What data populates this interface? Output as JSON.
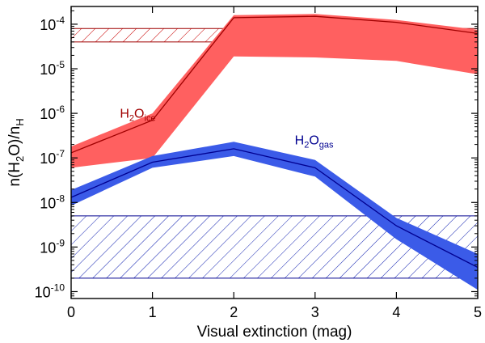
{
  "chart_data": {
    "type": "area",
    "x": [
      0,
      1,
      2,
      3,
      4,
      5
    ],
    "xlim": [
      0,
      5
    ],
    "xlabel": "Visual extinction (mag)",
    "x_ticks": [
      "0",
      "1",
      "2",
      "3",
      "4",
      "5"
    ],
    "ylabel": {
      "base": "n(H",
      "sub1": "2",
      "mid": "O)/n",
      "sub2": "H"
    },
    "yscale": "log",
    "ylim": [
      7e-11,
      0.00025
    ],
    "y_ticks": [
      {
        "value": 1e-10,
        "base": "10",
        "exp": "-10"
      },
      {
        "value": 1e-09,
        "base": "10",
        "exp": "-9"
      },
      {
        "value": 1e-08,
        "base": "10",
        "exp": "-8"
      },
      {
        "value": 1e-07,
        "base": "10",
        "exp": "-7"
      },
      {
        "value": 1e-06,
        "base": "10",
        "exp": "-6"
      },
      {
        "value": 1e-05,
        "base": "10",
        "exp": "-5"
      },
      {
        "value": 0.0001,
        "base": "10",
        "exp": "-4"
      }
    ],
    "series": [
      {
        "name": "H2O ice",
        "label": {
          "main": "H",
          "sub1": "2",
          "mid": "O",
          "sub2": "ice",
          "x": 0.6,
          "y": 8e-07
        },
        "band_color": "#ff6060",
        "line_color": "#a00000",
        "values": [
          1.3e-07,
          7e-07,
          0.00014,
          0.00015,
          0.00011,
          6.2e-05
        ],
        "upper": [
          1.8e-07,
          1e-06,
          0.00016,
          0.00017,
          0.000125,
          7.5e-05
        ],
        "lower": [
          6e-08,
          1e-07,
          1.9e-05,
          1.8e-05,
          1.5e-05,
          7.5e-06
        ],
        "observed_range": [
          4e-05,
          8e-05
        ]
      },
      {
        "name": "H2O gas",
        "label": {
          "main": "H",
          "sub1": "2",
          "mid": "O",
          "sub2": "gas",
          "x": 2.75,
          "y": 2e-07
        },
        "band_color": "#3b5be8",
        "line_color": "#000090",
        "values": [
          1.3e-08,
          8e-08,
          1.6e-07,
          6e-08,
          3e-09,
          3.5e-10
        ],
        "upper": [
          1.9e-08,
          1.1e-07,
          2.3e-07,
          9e-08,
          4.5e-09,
          7e-10
        ],
        "lower": [
          8.5e-09,
          6e-08,
          1.1e-07,
          3.8e-08,
          1.5e-09,
          1.1e-10
        ],
        "observed_range": [
          2e-10,
          5e-09
        ]
      }
    ]
  }
}
